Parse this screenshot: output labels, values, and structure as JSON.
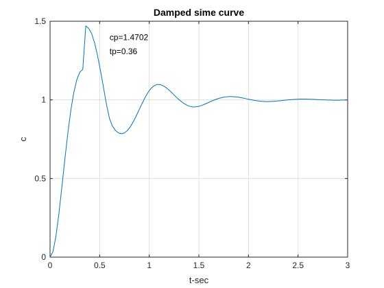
{
  "chart_data": {
    "type": "line",
    "title": "Damped sime curve",
    "xlabel": "t-sec",
    "ylabel": "c",
    "xlim": [
      0,
      3
    ],
    "ylim": [
      0,
      1.5
    ],
    "xticks": [
      0,
      0.5,
      1,
      1.5,
      2,
      2.5,
      3
    ],
    "yticks": [
      0,
      0.5,
      1,
      1.5
    ],
    "xtick_labels": [
      "0",
      "0.5",
      "1",
      "1.5",
      "2",
      "2.5",
      "3"
    ],
    "ytick_labels": [
      "0",
      "0.5",
      "1",
      "1.5"
    ],
    "grid": true,
    "annotations": [
      {
        "text": "cp=1.4702",
        "x": 0.6,
        "y": 1.38
      },
      {
        "text": "tp=0.36",
        "x": 0.6,
        "y": 1.29
      }
    ],
    "series": [
      {
        "color": "#0072bd",
        "x": [
          0,
          0.03,
          0.06,
          0.09,
          0.12,
          0.15,
          0.18,
          0.21,
          0.24,
          0.27,
          0.3,
          0.33,
          0.36,
          0.39,
          0.42,
          0.45,
          0.48,
          0.51,
          0.54,
          0.57,
          0.6,
          0.63,
          0.66,
          0.69,
          0.72,
          0.75,
          0.78,
          0.81,
          0.84,
          0.87,
          0.9,
          0.93,
          0.96,
          0.99,
          1.02,
          1.05,
          1.08,
          1.11,
          1.14,
          1.17,
          1.2,
          1.23,
          1.26,
          1.29,
          1.32,
          1.35,
          1.38,
          1.41,
          1.44,
          1.47,
          1.5,
          1.53,
          1.56,
          1.59,
          1.62,
          1.65,
          1.68,
          1.71,
          1.74,
          1.77,
          1.8,
          1.83,
          1.86,
          1.89,
          1.92,
          1.95,
          1.98,
          2.01,
          2.04,
          2.07,
          2.1,
          2.13,
          2.16,
          2.19,
          2.22,
          2.25,
          2.28,
          2.31,
          2.34,
          2.37,
          2.4,
          2.43,
          2.46,
          2.49,
          2.52,
          2.55,
          2.58,
          2.61,
          2.64,
          2.67,
          2.7,
          2.73,
          2.76,
          2.79,
          2.82,
          2.85,
          2.88,
          2.91,
          2.94,
          2.97,
          3.0
        ],
        "y": [
          0,
          0.036,
          0.136,
          0.281,
          0.451,
          0.627,
          0.793,
          0.936,
          1.049,
          1.129,
          1.176,
          1.194,
          1.47,
          1.455,
          1.42,
          1.36,
          1.278,
          1.18,
          1.074,
          0.967,
          0.88,
          0.832,
          0.805,
          0.79,
          0.785,
          0.79,
          0.805,
          0.83,
          0.862,
          0.9,
          0.94,
          0.98,
          1.018,
          1.05,
          1.075,
          1.091,
          1.098,
          1.097,
          1.09,
          1.078,
          1.062,
          1.044,
          1.025,
          1.007,
          0.991,
          0.977,
          0.966,
          0.959,
          0.955,
          0.956,
          0.959,
          0.965,
          0.973,
          0.981,
          0.99,
          0.998,
          1.005,
          1.011,
          1.016,
          1.019,
          1.021,
          1.021,
          1.02,
          1.018,
          1.015,
          1.011,
          1.007,
          1.003,
          0.999,
          0.996,
          0.993,
          0.991,
          0.99,
          0.989,
          0.99,
          0.991,
          0.992,
          0.994,
          0.996,
          0.998,
          1.0,
          1.002,
          1.003,
          1.004,
          1.005,
          1.005,
          1.005,
          1.004,
          1.004,
          1.003,
          1.002,
          1.001,
          1.0,
          0.999,
          0.999,
          0.998,
          0.998,
          0.998,
          0.999,
          0.999,
          0.999
        ]
      }
    ]
  }
}
